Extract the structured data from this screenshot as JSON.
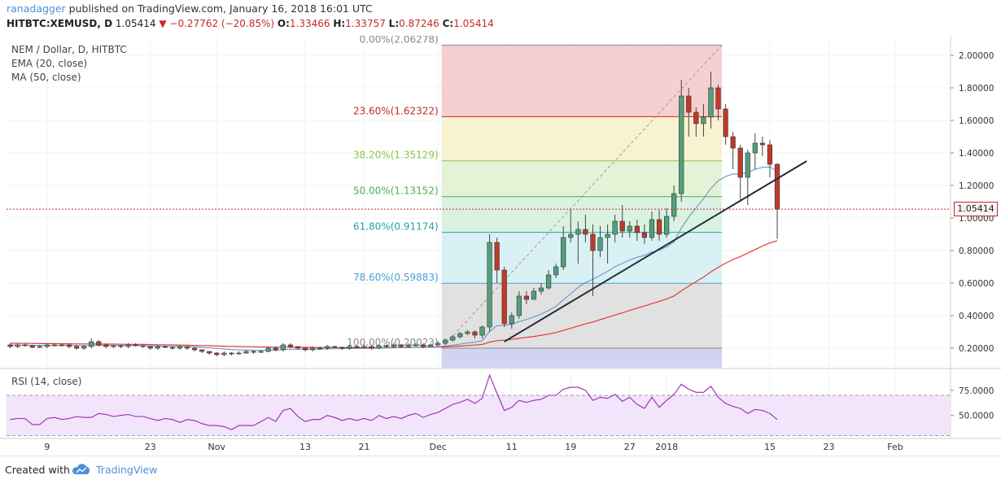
{
  "header": {
    "author": "ranadagger",
    "published_text": "published on TradingView.com, January 16, 2018 16:01 UTC",
    "symbol_line": "HITBTC:XEMUSD, D",
    "last_price": "1.05414",
    "change": "−0.27762 (−20.85%)",
    "open_label": "O:",
    "open": "1.33466",
    "high_label": "H:",
    "high": "1.33757",
    "low_label": "L:",
    "low": "0.87246",
    "close_label": "C:",
    "close": "1.05414"
  },
  "legend": {
    "title": "NEM / Dollar, D, HITBTC",
    "ema": "EMA (20, close)",
    "ma": "MA (50, close)",
    "rsi": "RSI (14, close)"
  },
  "current_price_flag": "1.05414",
  "footer": {
    "created_with": "Created with",
    "brand": "TradingView"
  },
  "colors": {
    "bull": "#53a07b",
    "bear": "#c0392b",
    "ema": "#5b8fc7",
    "ma": "#e53935",
    "trendline": "#1f2d3a",
    "rsi_line": "#9c27b0",
    "rsi_band": "#f1e4fb"
  },
  "chart_data": {
    "type": "candlestick",
    "symbol": "NEM / Dollar, D, HITBTC",
    "y_axis": {
      "ylim": [
        0.08,
        2.12
      ],
      "ticks": [
        "2.00000",
        "1.80000",
        "1.60000",
        "1.40000",
        "1.20000",
        "1.00000",
        "0.80000",
        "0.60000",
        "0.40000",
        "0.20000"
      ],
      "tick_values": [
        2.0,
        1.8,
        1.6,
        1.4,
        1.2,
        1.0,
        0.8,
        0.6,
        0.4,
        0.2
      ]
    },
    "x_axis": {
      "ticks": [
        {
          "label": "9",
          "index": 5
        },
        {
          "label": "23",
          "index": 19
        },
        {
          "label": "Nov",
          "index": 28
        },
        {
          "label": "13",
          "index": 40
        },
        {
          "label": "21",
          "index": 48
        },
        {
          "label": "Dec",
          "index": 58
        },
        {
          "label": "11",
          "index": 68
        },
        {
          "label": "19",
          "index": 76
        },
        {
          "label": "27",
          "index": 84
        },
        {
          "label": "2018",
          "index": 89
        },
        {
          "label": "15",
          "index": 103
        },
        {
          "label": "23",
          "index": 111
        },
        {
          "label": "Feb",
          "index": 120
        }
      ],
      "slot_count": 128
    },
    "candles_open": [
      0.22,
      0.21,
      0.22,
      0.215,
      0.205,
      0.21,
      0.22,
      0.215,
      0.22,
      0.21,
      0.2,
      0.21,
      0.24,
      0.22,
      0.21,
      0.215,
      0.21,
      0.22,
      0.215,
      0.21,
      0.2,
      0.21,
      0.205,
      0.2,
      0.21,
      0.2,
      0.19,
      0.18,
      0.17,
      0.16,
      0.17,
      0.165,
      0.17,
      0.18,
      0.175,
      0.18,
      0.2,
      0.19,
      0.22,
      0.21,
      0.2,
      0.19,
      0.2,
      0.2,
      0.21,
      0.205,
      0.2,
      0.21,
      0.205,
      0.21,
      0.2,
      0.215,
      0.21,
      0.22,
      0.21,
      0.22,
      0.22,
      0.21,
      0.22,
      0.23,
      0.25,
      0.27,
      0.29,
      0.3,
      0.28,
      0.33,
      0.85,
      0.68,
      0.35,
      0.4,
      0.52,
      0.5,
      0.55,
      0.57,
      0.65,
      0.7,
      0.88,
      0.9,
      0.93,
      0.9,
      0.8,
      0.88,
      0.9,
      0.98,
      0.92,
      0.95,
      0.91,
      0.88,
      0.99,
      0.9,
      1.01,
      1.15,
      1.75,
      1.65,
      1.58,
      1.62,
      1.8,
      1.67,
      1.5,
      1.43,
      1.25,
      1.4,
      1.46,
      1.45,
      1.33
    ],
    "candles_close": [
      0.21,
      0.22,
      0.215,
      0.205,
      0.21,
      0.22,
      0.215,
      0.22,
      0.21,
      0.2,
      0.21,
      0.24,
      0.22,
      0.21,
      0.215,
      0.21,
      0.22,
      0.215,
      0.21,
      0.2,
      0.21,
      0.205,
      0.2,
      0.21,
      0.2,
      0.19,
      0.18,
      0.17,
      0.16,
      0.17,
      0.165,
      0.17,
      0.18,
      0.175,
      0.18,
      0.2,
      0.19,
      0.22,
      0.21,
      0.2,
      0.19,
      0.2,
      0.2,
      0.21,
      0.205,
      0.2,
      0.21,
      0.205,
      0.21,
      0.2,
      0.215,
      0.21,
      0.22,
      0.21,
      0.22,
      0.22,
      0.21,
      0.22,
      0.23,
      0.25,
      0.27,
      0.29,
      0.3,
      0.28,
      0.33,
      0.85,
      0.68,
      0.35,
      0.4,
      0.52,
      0.5,
      0.55,
      0.57,
      0.65,
      0.7,
      0.88,
      0.9,
      0.93,
      0.9,
      0.8,
      0.88,
      0.9,
      0.98,
      0.92,
      0.95,
      0.91,
      0.88,
      0.99,
      0.9,
      1.01,
      1.15,
      1.75,
      1.65,
      1.58,
      1.62,
      1.8,
      1.67,
      1.5,
      1.43,
      1.25,
      1.4,
      1.46,
      1.45,
      1.33,
      1.05414
    ],
    "candles_high": [
      0.23,
      0.23,
      0.23,
      0.22,
      0.22,
      0.23,
      0.23,
      0.23,
      0.23,
      0.22,
      0.22,
      0.26,
      0.25,
      0.23,
      0.22,
      0.22,
      0.23,
      0.23,
      0.22,
      0.21,
      0.22,
      0.215,
      0.21,
      0.22,
      0.21,
      0.205,
      0.19,
      0.18,
      0.175,
      0.18,
      0.175,
      0.18,
      0.19,
      0.185,
      0.19,
      0.21,
      0.21,
      0.23,
      0.23,
      0.21,
      0.205,
      0.21,
      0.21,
      0.22,
      0.215,
      0.21,
      0.22,
      0.215,
      0.22,
      0.215,
      0.22,
      0.22,
      0.23,
      0.225,
      0.23,
      0.23,
      0.23,
      0.23,
      0.24,
      0.26,
      0.28,
      0.3,
      0.31,
      0.31,
      0.34,
      0.9,
      0.88,
      0.7,
      0.42,
      0.55,
      0.55,
      0.57,
      0.6,
      0.68,
      0.72,
      0.95,
      1.05,
      0.98,
      1.02,
      0.96,
      0.95,
      0.96,
      1.02,
      1.08,
      0.98,
      0.99,
      0.96,
      1.04,
      1.05,
      1.06,
      1.2,
      1.85,
      1.8,
      1.68,
      1.7,
      1.9,
      1.82,
      1.7,
      1.53,
      1.45,
      1.42,
      1.52,
      1.5,
      1.48,
      1.33757
    ],
    "candles_low": [
      0.2,
      0.2,
      0.21,
      0.2,
      0.2,
      0.2,
      0.21,
      0.21,
      0.2,
      0.19,
      0.19,
      0.2,
      0.21,
      0.2,
      0.2,
      0.2,
      0.2,
      0.21,
      0.2,
      0.19,
      0.19,
      0.2,
      0.19,
      0.19,
      0.19,
      0.18,
      0.17,
      0.16,
      0.15,
      0.15,
      0.155,
      0.16,
      0.165,
      0.165,
      0.17,
      0.175,
      0.18,
      0.18,
      0.2,
      0.19,
      0.18,
      0.18,
      0.19,
      0.19,
      0.2,
      0.19,
      0.19,
      0.2,
      0.2,
      0.19,
      0.195,
      0.2,
      0.2,
      0.2,
      0.2,
      0.21,
      0.2,
      0.21,
      0.21,
      0.22,
      0.24,
      0.26,
      0.28,
      0.26,
      0.26,
      0.3,
      0.6,
      0.33,
      0.32,
      0.38,
      0.47,
      0.5,
      0.53,
      0.56,
      0.63,
      0.68,
      0.85,
      0.72,
      0.85,
      0.52,
      0.76,
      0.72,
      0.85,
      0.88,
      0.88,
      0.86,
      0.84,
      0.86,
      0.86,
      0.88,
      0.98,
      1.1,
      1.5,
      1.5,
      1.5,
      1.55,
      1.6,
      1.45,
      1.3,
      1.1,
      1.08,
      1.3,
      1.38,
      1.25,
      0.87246
    ],
    "ema20": [
      0.22,
      0.219,
      0.219,
      0.218,
      0.217,
      0.217,
      0.217,
      0.217,
      0.217,
      0.216,
      0.215,
      0.217,
      0.217,
      0.217,
      0.216,
      0.216,
      0.216,
      0.216,
      0.215,
      0.214,
      0.213,
      0.213,
      0.211,
      0.211,
      0.21,
      0.208,
      0.205,
      0.202,
      0.198,
      0.195,
      0.192,
      0.19,
      0.189,
      0.187,
      0.187,
      0.188,
      0.188,
      0.191,
      0.193,
      0.193,
      0.193,
      0.194,
      0.194,
      0.196,
      0.196,
      0.197,
      0.198,
      0.198,
      0.199,
      0.199,
      0.2,
      0.201,
      0.202,
      0.203,
      0.204,
      0.205,
      0.206,
      0.207,
      0.209,
      0.213,
      0.218,
      0.225,
      0.232,
      0.237,
      0.246,
      0.303,
      0.339,
      0.34,
      0.346,
      0.363,
      0.376,
      0.392,
      0.409,
      0.432,
      0.457,
      0.497,
      0.535,
      0.573,
      0.604,
      0.623,
      0.648,
      0.672,
      0.701,
      0.721,
      0.742,
      0.758,
      0.77,
      0.791,
      0.802,
      0.822,
      0.853,
      0.938,
      1.006,
      1.063,
      1.117,
      1.182,
      1.229,
      1.255,
      1.271,
      1.269,
      1.281,
      1.298,
      1.312,
      1.314,
      1.289
    ],
    "ma50": [
      0.23,
      0.23,
      0.229,
      0.229,
      0.228,
      0.228,
      0.228,
      0.227,
      0.227,
      0.226,
      0.226,
      0.226,
      0.226,
      0.225,
      0.225,
      0.224,
      0.224,
      0.223,
      0.223,
      0.222,
      0.221,
      0.221,
      0.22,
      0.219,
      0.218,
      0.217,
      0.216,
      0.215,
      0.213,
      0.212,
      0.211,
      0.21,
      0.209,
      0.208,
      0.207,
      0.207,
      0.206,
      0.206,
      0.206,
      0.205,
      0.205,
      0.205,
      0.204,
      0.204,
      0.204,
      0.204,
      0.203,
      0.203,
      0.203,
      0.203,
      0.203,
      0.203,
      0.204,
      0.204,
      0.204,
      0.205,
      0.205,
      0.206,
      0.207,
      0.208,
      0.21,
      0.213,
      0.216,
      0.219,
      0.223,
      0.237,
      0.246,
      0.249,
      0.254,
      0.26,
      0.266,
      0.272,
      0.279,
      0.287,
      0.296,
      0.309,
      0.322,
      0.336,
      0.349,
      0.361,
      0.375,
      0.389,
      0.404,
      0.417,
      0.432,
      0.446,
      0.459,
      0.474,
      0.487,
      0.503,
      0.521,
      0.552,
      0.581,
      0.609,
      0.637,
      0.669,
      0.697,
      0.722,
      0.745,
      0.763,
      0.784,
      0.806,
      0.828,
      0.847,
      0.86
    ],
    "trendline": [
      {
        "index": 67,
        "value": 0.24
      },
      {
        "index": 108,
        "value": 1.35
      }
    ],
    "fibonacci": {
      "start_index": 59,
      "end_index": 96,
      "levels": [
        {
          "label": "0.00%(2.06278)",
          "value": 2.06278,
          "color": "#888888"
        },
        {
          "label": "23.60%(1.62322)",
          "value": 1.62322,
          "color": "#c62828"
        },
        {
          "label": "38.20%(1.35129)",
          "value": 1.35129,
          "color": "#8bc34a"
        },
        {
          "label": "50.00%(1.13152)",
          "value": 1.13152,
          "color": "#4caf50"
        },
        {
          "label": "61.80%(0.91174)",
          "value": 0.91174,
          "color": "#26a69a"
        },
        {
          "label": "78.60%(0.59883)",
          "value": 0.59883,
          "color": "#4a9fd6"
        },
        {
          "label": "100.00%(0.20023)",
          "value": 0.20023,
          "color": "#888888"
        }
      ],
      "zone_colors": [
        "#f5c8c8",
        "#f6f0c7",
        "#dff0cf",
        "#d4f0dc",
        "#d2eef2",
        "#dcdcdc",
        "#c9cbef"
      ]
    },
    "rsi": {
      "ylim": [
        28,
        95
      ],
      "ticks": [
        "75.0000",
        "50.0000"
      ],
      "tick_values": [
        75,
        50
      ],
      "band": [
        30,
        70
      ],
      "values": [
        46,
        47,
        47,
        41,
        41,
        47,
        48,
        46,
        47,
        49,
        48,
        48,
        52,
        51,
        49,
        50,
        51,
        49,
        49,
        47,
        45,
        47,
        46,
        43,
        46,
        45,
        42,
        40,
        40,
        39,
        36,
        40,
        40,
        40,
        44,
        48,
        44,
        55,
        57,
        49,
        44,
        46,
        46,
        50,
        48,
        45,
        47,
        45,
        47,
        45,
        50,
        47,
        49,
        47,
        50,
        52,
        48,
        51,
        53,
        57,
        61,
        63,
        66,
        62,
        67,
        90,
        72,
        55,
        58,
        65,
        63,
        65,
        66,
        70,
        70,
        76,
        78,
        78,
        75,
        65,
        68,
        67,
        71,
        64,
        68,
        61,
        57,
        68,
        58,
        65,
        71,
        81,
        76,
        73,
        73,
        79,
        68,
        62,
        59,
        57,
        52,
        56,
        55,
        52,
        46
      ]
    }
  }
}
